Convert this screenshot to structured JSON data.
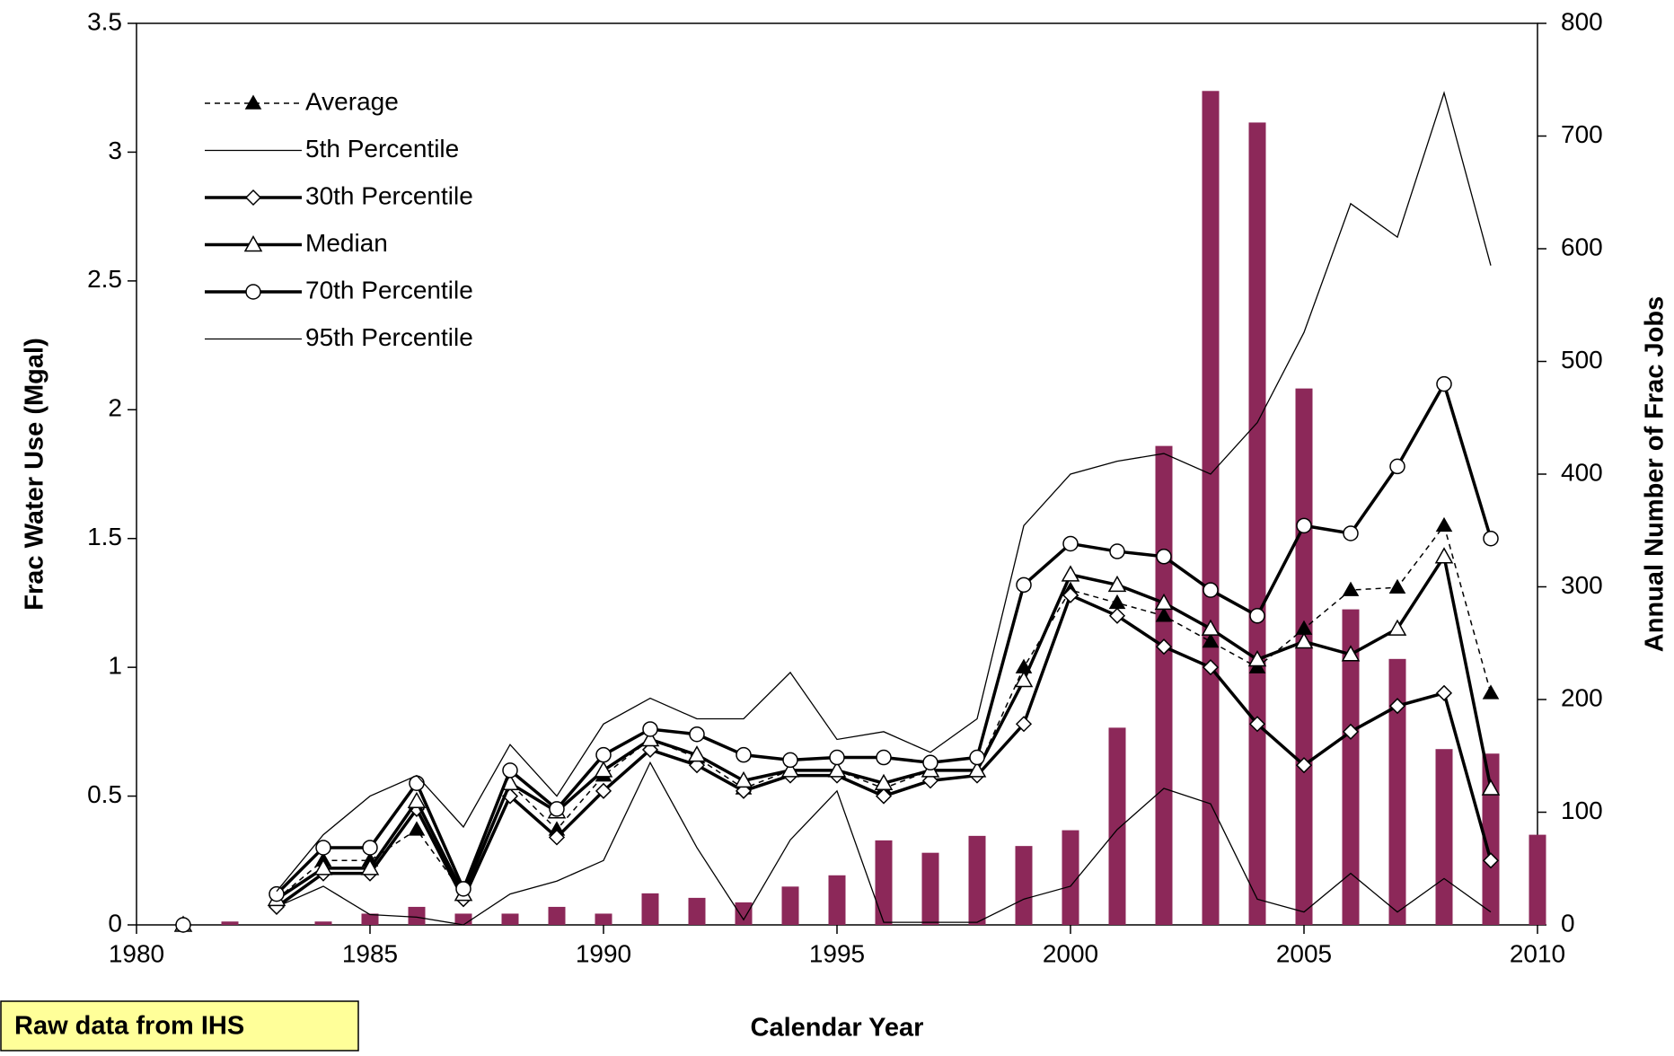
{
  "chart_data": {
    "type": "combo",
    "x_label": "Calendar Year",
    "y_label": "Frac Water Use (Mgal)",
    "y2_label": "Annual Number of Frac Jobs",
    "annotation": "Raw data from IHS",
    "x": [
      1981,
      1982,
      1983,
      1984,
      1985,
      1986,
      1987,
      1988,
      1989,
      1990,
      1991,
      1992,
      1993,
      1994,
      1995,
      1996,
      1997,
      1998,
      1999,
      2000,
      2001,
      2002,
      2003,
      2004,
      2005,
      2006,
      2007,
      2008,
      2009,
      2010
    ],
    "xlim": [
      1980,
      2010
    ],
    "xticks": [
      1980,
      1985,
      1990,
      1995,
      2000,
      2005,
      2010
    ],
    "ylim": [
      0,
      3.5
    ],
    "yticks": [
      0,
      0.5,
      1,
      1.5,
      2,
      2.5,
      3,
      3.5
    ],
    "y2lim": [
      0,
      800
    ],
    "y2ticks": [
      0,
      100,
      200,
      300,
      400,
      500,
      600,
      700,
      800
    ],
    "legend": "upper left",
    "grid": false,
    "series": [
      {
        "name": "Average",
        "kind": "line",
        "marker": "filled-triangle",
        "dash": true,
        "width": 1.5,
        "color": "#000000",
        "values": [
          0,
          null,
          0.1,
          0.25,
          0.25,
          0.37,
          0.12,
          0.55,
          0.37,
          0.58,
          0.72,
          0.65,
          0.53,
          0.6,
          0.6,
          0.53,
          0.6,
          0.6,
          1.0,
          1.3,
          1.25,
          1.2,
          1.1,
          1.0,
          1.15,
          1.3,
          1.31,
          1.55,
          0.9,
          null
        ]
      },
      {
        "name": "5th Percentile",
        "kind": "line",
        "marker": "none",
        "dash": false,
        "width": 1.3,
        "color": "#000000",
        "values": [
          0,
          null,
          0.07,
          0.15,
          0.04,
          0.03,
          0.0,
          0.12,
          0.17,
          0.25,
          0.63,
          0.3,
          0.02,
          0.33,
          0.52,
          0.01,
          0.01,
          0.01,
          0.1,
          0.15,
          0.37,
          0.53,
          0.47,
          0.1,
          0.05,
          0.2,
          0.05,
          0.18,
          0.05,
          null
        ]
      },
      {
        "name": "30th Percentile",
        "kind": "line",
        "marker": "diamond",
        "dash": false,
        "width": 3.5,
        "color": "#000000",
        "values": [
          0,
          null,
          0.07,
          0.2,
          0.2,
          0.45,
          0.1,
          0.5,
          0.34,
          0.52,
          0.68,
          0.62,
          0.52,
          0.58,
          0.58,
          0.5,
          0.56,
          0.58,
          0.78,
          1.28,
          1.2,
          1.08,
          1.0,
          0.78,
          0.62,
          0.75,
          0.85,
          0.9,
          0.25,
          null
        ]
      },
      {
        "name": "Median",
        "kind": "line",
        "marker": "open-triangle",
        "dash": false,
        "width": 3.5,
        "color": "#000000",
        "values": [
          0,
          null,
          0.1,
          0.22,
          0.22,
          0.48,
          0.12,
          0.55,
          0.44,
          0.6,
          0.72,
          0.66,
          0.56,
          0.6,
          0.6,
          0.55,
          0.6,
          0.6,
          0.95,
          1.36,
          1.32,
          1.25,
          1.15,
          1.03,
          1.1,
          1.05,
          1.15,
          1.43,
          0.53,
          null
        ]
      },
      {
        "name": "70th Percentile",
        "kind": "line",
        "marker": "circle",
        "dash": false,
        "width": 3.5,
        "color": "#000000",
        "values": [
          0,
          null,
          0.12,
          0.3,
          0.3,
          0.55,
          0.14,
          0.6,
          0.45,
          0.66,
          0.76,
          0.74,
          0.66,
          0.64,
          0.65,
          0.65,
          0.63,
          0.65,
          1.32,
          1.48,
          1.45,
          1.43,
          1.3,
          1.2,
          1.55,
          1.52,
          1.78,
          2.1,
          1.5,
          null
        ]
      },
      {
        "name": "95th Percentile",
        "kind": "line",
        "marker": "none",
        "dash": false,
        "width": 1.3,
        "color": "#000000",
        "values": [
          0,
          null,
          0.13,
          0.35,
          0.5,
          0.58,
          0.38,
          0.7,
          0.5,
          0.78,
          0.88,
          0.8,
          0.8,
          0.98,
          0.72,
          0.75,
          0.67,
          0.8,
          1.55,
          1.75,
          1.8,
          1.83,
          1.75,
          1.95,
          2.3,
          2.8,
          2.67,
          3.23,
          2.56,
          null
        ]
      },
      {
        "name": "Annual Number of Frac Jobs",
        "kind": "bar",
        "axis": "y2",
        "color": "#8c2859",
        "values": [
          0,
          3,
          0,
          3,
          10,
          16,
          10,
          10,
          16,
          10,
          28,
          24,
          20,
          34,
          44,
          75,
          64,
          79,
          70,
          84,
          175,
          425,
          740,
          712,
          476,
          280,
          236,
          156,
          152,
          80
        ]
      }
    ]
  }
}
